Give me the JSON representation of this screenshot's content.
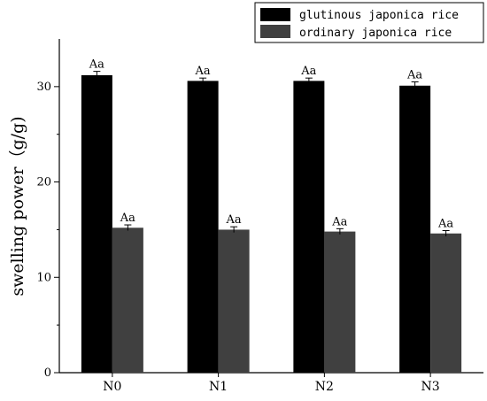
{
  "chart_data": {
    "type": "bar",
    "categories": [
      "N0",
      "N1",
      "N2",
      "N3"
    ],
    "series": [
      {
        "name": "glutinous japonica rice",
        "color": "#000000",
        "values": [
          31.2,
          30.6,
          30.6,
          30.1
        ],
        "errors": [
          0.4,
          0.3,
          0.3,
          0.4
        ],
        "labels": [
          "Aa",
          "Aa",
          "Aa",
          "Aa"
        ]
      },
      {
        "name": "ordinary japonica rice",
        "color": "#404040",
        "values": [
          15.2,
          15.0,
          14.8,
          14.6
        ],
        "errors": [
          0.3,
          0.3,
          0.3,
          0.3
        ],
        "labels": [
          "Aa",
          "Aa",
          "Aa",
          "Aa"
        ]
      }
    ],
    "title": "",
    "xlabel": "",
    "ylabel": "swelling power（g/g)",
    "ylim": [
      0,
      35
    ],
    "yticks": [
      0,
      10,
      20,
      30
    ],
    "grid": false,
    "legend": "top-right"
  }
}
